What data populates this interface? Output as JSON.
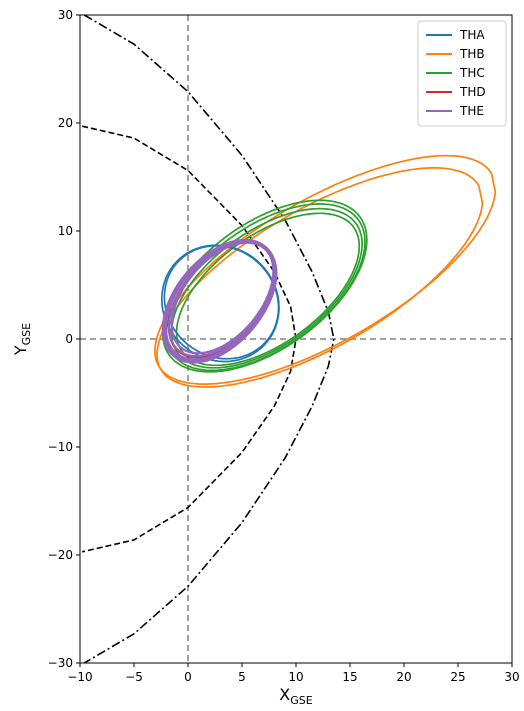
{
  "chart_data": {
    "type": "line",
    "title": "",
    "xlabel": "X",
    "xlabel_sub": "GSE",
    "ylabel": "Y",
    "ylabel_sub": "GSE",
    "xlim": [
      -10,
      30
    ],
    "ylim": [
      -30,
      30
    ],
    "xticks": [
      -10,
      -5,
      0,
      5,
      10,
      15,
      20,
      25,
      30
    ],
    "yticks": [
      -30,
      -20,
      -10,
      0,
      10,
      20,
      30
    ],
    "xtick_labels": [
      "−10",
      "−5",
      "0",
      "5",
      "10",
      "15",
      "20",
      "25",
      "30"
    ],
    "ytick_labels": [
      "−30",
      "−20",
      "−10",
      "0",
      "10",
      "20",
      "30"
    ],
    "grid": false,
    "legend_position": "top-right",
    "colors": {
      "THA": "#1f77b4",
      "THB": "#ff7f0e",
      "THC": "#2ca02c",
      "THD": "#d62728",
      "THE": "#9467bd",
      "boundary": "#000000",
      "reference": "#808080"
    },
    "reference_lines": [
      {
        "orientation": "vertical",
        "value": 0,
        "style": "dashed"
      },
      {
        "orientation": "horizontal",
        "value": 0,
        "style": "dashed"
      }
    ],
    "boundaries": [
      {
        "style": "dashed",
        "points": [
          [
            -9.8,
            19.7
          ],
          [
            -5,
            18.6
          ],
          [
            0,
            15.6
          ],
          [
            5,
            10.5
          ],
          [
            8,
            6.2
          ],
          [
            9.5,
            3.0
          ],
          [
            10.0,
            0
          ],
          [
            9.5,
            -3.0
          ],
          [
            8,
            -6.2
          ],
          [
            5,
            -10.5
          ],
          [
            0,
            -15.6
          ],
          [
            -5,
            -18.6
          ],
          [
            -9.8,
            -19.7
          ]
        ]
      },
      {
        "style": "dashdot",
        "points": [
          [
            -9.6,
            30
          ],
          [
            -5,
            27.3
          ],
          [
            0,
            22.9
          ],
          [
            5,
            17.0
          ],
          [
            9,
            11.0
          ],
          [
            11.5,
            6.2
          ],
          [
            13.0,
            2.5
          ],
          [
            13.5,
            0
          ],
          [
            13.0,
            -2.5
          ],
          [
            11.5,
            -6.2
          ],
          [
            9,
            -11.0
          ],
          [
            5,
            -17.0
          ],
          [
            0,
            -22.9
          ],
          [
            -5,
            -27.3
          ],
          [
            -9.6,
            -30
          ]
        ]
      }
    ],
    "series": [
      {
        "name": "THA",
        "orbits": [
          {
            "center": [
              3.0,
              3.3
            ],
            "rx": 5.2,
            "ry": 5.6,
            "rotation": 48
          },
          {
            "center": [
              3.1,
              3.4
            ],
            "rx": 5.0,
            "ry": 5.5,
            "rotation": 48
          }
        ]
      },
      {
        "name": "THB",
        "orbits": [
          {
            "center": [
              12.7,
              6.4
            ],
            "rx": 17.8,
            "ry": 6.6,
            "rotation": 30,
            "gap": [
              -12,
              -2
            ]
          },
          {
            "center": [
              12.2,
              5.7
            ],
            "rx": 17.0,
            "ry": 6.4,
            "rotation": 30,
            "gap": [
              -12,
              -2
            ]
          }
        ]
      },
      {
        "name": "THC",
        "orbits": [
          {
            "center": [
              7.2,
              4.8
            ],
            "rx": 10.6,
            "ry": 5.6,
            "rotation": 36
          },
          {
            "center": [
              7.3,
              4.7
            ],
            "rx": 10.2,
            "ry": 5.3,
            "rotation": 36
          },
          {
            "center": [
              7.4,
              4.6
            ],
            "rx": 9.8,
            "ry": 5.0,
            "rotation": 36
          },
          {
            "center": [
              7.1,
              4.9
            ],
            "rx": 10.9,
            "ry": 5.8,
            "rotation": 36
          }
        ]
      },
      {
        "name": "THD",
        "orbits": [
          {
            "center": [
              3.1,
              3.6
            ],
            "rx": 6.2,
            "ry": 3.7,
            "rotation": 50
          }
        ]
      },
      {
        "name": "THE",
        "orbits": [
          {
            "center": [
              3.0,
              3.6
            ],
            "rx": 6.4,
            "ry": 3.8,
            "rotation": 50
          },
          {
            "center": [
              3.1,
              3.7
            ],
            "rx": 6.2,
            "ry": 3.6,
            "rotation": 50
          },
          {
            "center": [
              2.9,
              3.5
            ],
            "rx": 6.6,
            "ry": 4.0,
            "rotation": 50
          },
          {
            "center": [
              3.2,
              3.8
            ],
            "rx": 6.0,
            "ry": 3.5,
            "rotation": 50
          },
          {
            "center": [
              3.0,
              3.5
            ],
            "rx": 6.5,
            "ry": 3.9,
            "rotation": 49
          }
        ]
      }
    ]
  }
}
